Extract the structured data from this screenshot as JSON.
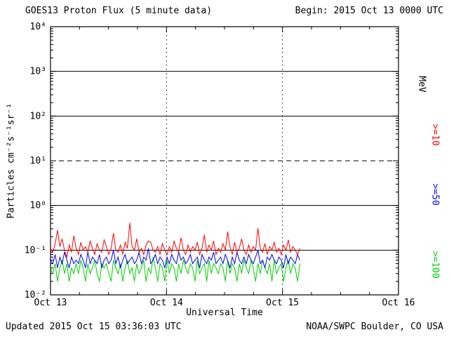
{
  "header": {
    "title": "GOES13 Proton Flux (5 minute data)",
    "begin_label": "Begin: 2015 Oct 13 0000 UTC"
  },
  "footer": {
    "updated": "Updated 2015 Oct 15 03:36:03 UTC",
    "credit": "NOAA/SWPC Boulder, CO USA"
  },
  "axes": {
    "x_title": "Universal Time",
    "y_title": "Particles cm⁻²s⁻¹sr⁻¹"
  },
  "chart_data": {
    "type": "line",
    "title": "GOES13 Proton Flux (5 minute data)",
    "xlabel": "Universal Time",
    "ylabel": "Particles cm⁻²s⁻¹sr⁻¹",
    "y_scale": "log",
    "y_range_exp": [
      -2,
      4
    ],
    "y_tick_exponents": [
      4,
      3,
      2,
      1,
      0,
      -1,
      -2
    ],
    "y_tick_labels": [
      "10⁴",
      "10³",
      "10²",
      "10¹",
      "10⁰",
      "10⁻¹",
      "10⁻²"
    ],
    "x_range_days": [
      0,
      3
    ],
    "x_tick_days": [
      0,
      1,
      2,
      3
    ],
    "x_tick_labels": [
      "Oct 13",
      "Oct 14",
      "Oct 15",
      "Oct 16"
    ],
    "hlines": [
      {
        "exp": 3,
        "style": "solid"
      },
      {
        "exp": 2,
        "style": "solid"
      },
      {
        "exp": 1,
        "style": "dashed"
      },
      {
        "exp": 0,
        "style": "solid"
      },
      {
        "exp": -1,
        "style": "solid"
      }
    ],
    "vlines_days": [
      1,
      2
    ],
    "data_start_day": 0,
    "data_end_day": 2.15,
    "series": [
      {
        "name": ">=100 MeV",
        "color": "#00d000",
        "values": [
          0.04,
          0.03,
          0.05,
          0.02,
          0.04,
          0.06,
          0.03,
          0.05,
          0.02,
          0.04,
          0.03,
          0.05,
          0.03,
          0.06,
          0.04,
          0.02,
          0.05,
          0.03,
          0.04,
          0.06,
          0.03,
          0.02,
          0.05,
          0.04,
          0.05,
          0.03,
          0.02,
          0.06,
          0.04,
          0.03,
          0.05,
          0.02,
          0.04,
          0.06,
          0.03,
          0.04,
          0.02,
          0.05,
          0.03,
          0.04,
          0.06,
          0.02,
          0.04,
          0.03,
          0.07,
          0.04,
          0.02,
          0.05,
          0.04,
          0.02,
          0.06,
          0.03,
          0.05,
          0.04,
          0.02,
          0.05,
          0.03,
          0.06,
          0.04,
          0.03,
          0.05,
          0.04,
          0.02,
          0.06,
          0.03,
          0.04,
          0.05,
          0.02,
          0.06,
          0.03,
          0.05,
          0.04,
          0.03,
          0.05,
          0.04,
          0.02,
          0.06,
          0.03,
          0.05,
          0.04,
          0.02,
          0.05,
          0.03,
          0.06,
          0.04,
          0.03,
          0.06,
          0.04,
          0.02,
          0.05,
          0.03,
          0.06,
          0.04,
          0.03,
          0.05,
          0.02,
          0.06,
          0.03,
          0.04,
          0.05,
          0.02,
          0.04,
          0.06,
          0.03,
          0.05,
          0.04,
          0.02,
          0.05
        ]
      },
      {
        "name": ">=50 MeV",
        "color": "#0000ff",
        "values": [
          0.06,
          0.05,
          0.08,
          0.04,
          0.07,
          0.05,
          0.09,
          0.06,
          0.04,
          0.07,
          0.05,
          0.06,
          0.05,
          0.08,
          0.06,
          0.04,
          0.09,
          0.05,
          0.07,
          0.06,
          0.05,
          0.08,
          0.04,
          0.06,
          0.07,
          0.05,
          0.06,
          0.1,
          0.05,
          0.07,
          0.04,
          0.06,
          0.08,
          0.05,
          0.06,
          0.07,
          0.05,
          0.06,
          0.09,
          0.05,
          0.07,
          0.06,
          0.11,
          0.05,
          0.06,
          0.08,
          0.05,
          0.07,
          0.06,
          0.04,
          0.07,
          0.05,
          0.08,
          0.06,
          0.05,
          0.09,
          0.06,
          0.07,
          0.05,
          0.06,
          0.08,
          0.05,
          0.06,
          0.07,
          0.04,
          0.08,
          0.06,
          0.05,
          0.07,
          0.06,
          0.09,
          0.05,
          0.06,
          0.07,
          0.05,
          0.08,
          0.06,
          0.04,
          0.07,
          0.05,
          0.09,
          0.06,
          0.05,
          0.07,
          0.05,
          0.08,
          0.06,
          0.05,
          0.07,
          0.1,
          0.05,
          0.06,
          0.04,
          0.07,
          0.06,
          0.08,
          0.06,
          0.05,
          0.07,
          0.06,
          0.04,
          0.08,
          0.05,
          0.07,
          0.06,
          0.05,
          0.08,
          0.06
        ]
      },
      {
        "name": ">=10 MeV",
        "color": "#ff0000",
        "values": [
          0.11,
          0.09,
          0.14,
          0.28,
          0.12,
          0.18,
          0.1,
          0.07,
          0.13,
          0.09,
          0.21,
          0.11,
          0.08,
          0.15,
          0.1,
          0.12,
          0.09,
          0.16,
          0.11,
          0.08,
          0.14,
          0.1,
          0.09,
          0.17,
          0.12,
          0.08,
          0.11,
          0.24,
          0.1,
          0.09,
          0.13,
          0.08,
          0.15,
          0.11,
          0.41,
          0.12,
          0.1,
          0.18,
          0.09,
          0.11,
          0.08,
          0.13,
          0.16,
          0.15,
          0.1,
          0.09,
          0.12,
          0.08,
          0.14,
          0.1,
          0.08,
          0.12,
          0.09,
          0.16,
          0.11,
          0.09,
          0.19,
          0.1,
          0.08,
          0.13,
          0.09,
          0.12,
          0.1,
          0.15,
          0.08,
          0.11,
          0.22,
          0.09,
          0.13,
          0.1,
          0.16,
          0.08,
          0.11,
          0.09,
          0.14,
          0.1,
          0.26,
          0.12,
          0.08,
          0.15,
          0.09,
          0.11,
          0.18,
          0.1,
          0.08,
          0.13,
          0.09,
          0.12,
          0.1,
          0.31,
          0.11,
          0.09,
          0.14,
          0.08,
          0.12,
          0.1,
          0.15,
          0.09,
          0.11,
          0.08,
          0.13,
          0.1,
          0.17,
          0.09,
          0.12,
          0.1,
          0.08,
          0.11
        ]
      }
    ],
    "right_labels": [
      {
        "text": "MeV",
        "color": "#000000"
      },
      {
        "text": ">=10",
        "color": "#ff0000"
      },
      {
        "text": ">=50",
        "color": "#0000ff"
      },
      {
        "text": ">=100",
        "color": "#00d000"
      }
    ]
  }
}
